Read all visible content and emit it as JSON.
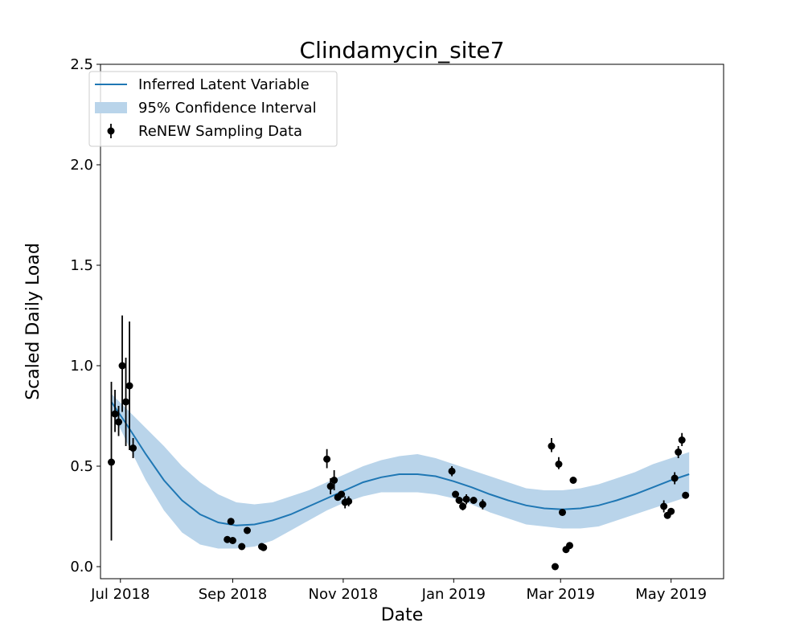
{
  "chart_data": {
    "type": "line",
    "title": "Clindamycin_site7",
    "xlabel": "Date",
    "ylabel": "Scaled Daily Load",
    "xlim": [
      "2018-06-20",
      "2019-05-30"
    ],
    "ylim": [
      -0.06,
      2.5
    ],
    "xticks": [
      {
        "date": "2018-07-01",
        "label": "Jul 2018"
      },
      {
        "date": "2018-09-01",
        "label": "Sep 2018"
      },
      {
        "date": "2018-11-01",
        "label": "Nov 2018"
      },
      {
        "date": "2019-01-01",
        "label": "Jan 2019"
      },
      {
        "date": "2019-03-01",
        "label": "Mar 2019"
      },
      {
        "date": "2019-05-01",
        "label": "May 2019"
      }
    ],
    "yticks": [
      {
        "value": 0.0,
        "label": "0.0"
      },
      {
        "value": 0.5,
        "label": "0.5"
      },
      {
        "value": 1.0,
        "label": "1.0"
      },
      {
        "value": 1.5,
        "label": "1.5"
      },
      {
        "value": 2.0,
        "label": "2.0"
      },
      {
        "value": 2.5,
        "label": "2.5"
      }
    ],
    "grid": false,
    "legend_position": "top-left",
    "colors": {
      "line": "#1f77b4",
      "band": "#b9d4ea",
      "points": "#000000"
    },
    "series": [
      {
        "name": "Inferred Latent Variable",
        "kind": "line",
        "points": [
          {
            "x": "2018-06-26",
            "y": 0.82
          },
          {
            "x": "2018-07-05",
            "y": 0.7
          },
          {
            "x": "2018-07-15",
            "y": 0.56
          },
          {
            "x": "2018-07-25",
            "y": 0.43
          },
          {
            "x": "2018-08-04",
            "y": 0.33
          },
          {
            "x": "2018-08-14",
            "y": 0.26
          },
          {
            "x": "2018-08-24",
            "y": 0.22
          },
          {
            "x": "2018-09-03",
            "y": 0.205
          },
          {
            "x": "2018-09-13",
            "y": 0.21
          },
          {
            "x": "2018-09-23",
            "y": 0.23
          },
          {
            "x": "2018-10-03",
            "y": 0.26
          },
          {
            "x": "2018-10-13",
            "y": 0.3
          },
          {
            "x": "2018-10-23",
            "y": 0.34
          },
          {
            "x": "2018-11-02",
            "y": 0.38
          },
          {
            "x": "2018-11-12",
            "y": 0.42
          },
          {
            "x": "2018-11-22",
            "y": 0.445
          },
          {
            "x": "2018-12-02",
            "y": 0.46
          },
          {
            "x": "2018-12-12",
            "y": 0.46
          },
          {
            "x": "2018-12-22",
            "y": 0.45
          },
          {
            "x": "2019-01-01",
            "y": 0.425
          },
          {
            "x": "2019-01-11",
            "y": 0.395
          },
          {
            "x": "2019-01-21",
            "y": 0.36
          },
          {
            "x": "2019-01-31",
            "y": 0.33
          },
          {
            "x": "2019-02-10",
            "y": 0.305
          },
          {
            "x": "2019-02-20",
            "y": 0.29
          },
          {
            "x": "2019-03-02",
            "y": 0.285
          },
          {
            "x": "2019-03-12",
            "y": 0.29
          },
          {
            "x": "2019-03-22",
            "y": 0.305
          },
          {
            "x": "2019-04-01",
            "y": 0.33
          },
          {
            "x": "2019-04-11",
            "y": 0.36
          },
          {
            "x": "2019-04-21",
            "y": 0.395
          },
          {
            "x": "2019-05-01",
            "y": 0.43
          },
          {
            "x": "2019-05-11",
            "y": 0.46
          }
        ]
      },
      {
        "name": "95% Confidence Interval",
        "kind": "band",
        "points": [
          {
            "x": "2018-06-26",
            "lower": 0.78,
            "upper": 0.86
          },
          {
            "x": "2018-07-05",
            "lower": 0.61,
            "upper": 0.78
          },
          {
            "x": "2018-07-15",
            "lower": 0.43,
            "upper": 0.69
          },
          {
            "x": "2018-07-25",
            "lower": 0.28,
            "upper": 0.6
          },
          {
            "x": "2018-08-04",
            "lower": 0.17,
            "upper": 0.5
          },
          {
            "x": "2018-08-14",
            "lower": 0.11,
            "upper": 0.42
          },
          {
            "x": "2018-08-24",
            "lower": 0.09,
            "upper": 0.36
          },
          {
            "x": "2018-09-03",
            "lower": 0.09,
            "upper": 0.32
          },
          {
            "x": "2018-09-13",
            "lower": 0.1,
            "upper": 0.31
          },
          {
            "x": "2018-09-23",
            "lower": 0.13,
            "upper": 0.32
          },
          {
            "x": "2018-10-03",
            "lower": 0.18,
            "upper": 0.35
          },
          {
            "x": "2018-10-13",
            "lower": 0.23,
            "upper": 0.38
          },
          {
            "x": "2018-10-23",
            "lower": 0.28,
            "upper": 0.42
          },
          {
            "x": "2018-11-02",
            "lower": 0.32,
            "upper": 0.46
          },
          {
            "x": "2018-11-12",
            "lower": 0.35,
            "upper": 0.5
          },
          {
            "x": "2018-11-22",
            "lower": 0.37,
            "upper": 0.53
          },
          {
            "x": "2018-12-02",
            "lower": 0.37,
            "upper": 0.55
          },
          {
            "x": "2018-12-12",
            "lower": 0.37,
            "upper": 0.56
          },
          {
            "x": "2018-12-22",
            "lower": 0.36,
            "upper": 0.54
          },
          {
            "x": "2019-01-01",
            "lower": 0.34,
            "upper": 0.51
          },
          {
            "x": "2019-01-11",
            "lower": 0.31,
            "upper": 0.48
          },
          {
            "x": "2019-01-21",
            "lower": 0.27,
            "upper": 0.45
          },
          {
            "x": "2019-01-31",
            "lower": 0.24,
            "upper": 0.42
          },
          {
            "x": "2019-02-10",
            "lower": 0.21,
            "upper": 0.39
          },
          {
            "x": "2019-02-20",
            "lower": 0.2,
            "upper": 0.38
          },
          {
            "x": "2019-03-02",
            "lower": 0.19,
            "upper": 0.38
          },
          {
            "x": "2019-03-12",
            "lower": 0.19,
            "upper": 0.39
          },
          {
            "x": "2019-03-22",
            "lower": 0.2,
            "upper": 0.41
          },
          {
            "x": "2019-04-01",
            "lower": 0.23,
            "upper": 0.44
          },
          {
            "x": "2019-04-11",
            "lower": 0.26,
            "upper": 0.47
          },
          {
            "x": "2019-04-21",
            "lower": 0.29,
            "upper": 0.51
          },
          {
            "x": "2019-05-01",
            "lower": 0.32,
            "upper": 0.54
          },
          {
            "x": "2019-05-11",
            "lower": 0.35,
            "upper": 0.57
          }
        ]
      },
      {
        "name": "ReNEW Sampling Data",
        "kind": "errorbar",
        "points": [
          {
            "x": "2018-06-26",
            "y": 0.52,
            "lower": 0.13,
            "upper": 0.92
          },
          {
            "x": "2018-06-28",
            "y": 0.76,
            "lower": 0.67,
            "upper": 0.88
          },
          {
            "x": "2018-06-30",
            "y": 0.72,
            "lower": 0.65,
            "upper": 0.8
          },
          {
            "x": "2018-07-02",
            "y": 1.0,
            "lower": 0.77,
            "upper": 1.25
          },
          {
            "x": "2018-07-04",
            "y": 0.82,
            "lower": 0.6,
            "upper": 1.04
          },
          {
            "x": "2018-07-06",
            "y": 0.9,
            "lower": 0.58,
            "upper": 1.22
          },
          {
            "x": "2018-07-08",
            "y": 0.59,
            "lower": 0.54,
            "upper": 0.64
          },
          {
            "x": "2018-08-29",
            "y": 0.135
          },
          {
            "x": "2018-08-31",
            "y": 0.225
          },
          {
            "x": "2018-09-01",
            "y": 0.13
          },
          {
            "x": "2018-09-06",
            "y": 0.1
          },
          {
            "x": "2018-09-09",
            "y": 0.18
          },
          {
            "x": "2018-09-17",
            "y": 0.1
          },
          {
            "x": "2018-09-18",
            "y": 0.095
          },
          {
            "x": "2018-10-23",
            "y": 0.535,
            "lower": 0.49,
            "upper": 0.585
          },
          {
            "x": "2018-10-25",
            "y": 0.4,
            "lower": 0.36,
            "upper": 0.44
          },
          {
            "x": "2018-10-27",
            "y": 0.43,
            "lower": 0.38,
            "upper": 0.48
          },
          {
            "x": "2018-10-29",
            "y": 0.345
          },
          {
            "x": "2018-10-31",
            "y": 0.36
          },
          {
            "x": "2018-11-02",
            "y": 0.32,
            "lower": 0.29,
            "upper": 0.35
          },
          {
            "x": "2018-11-04",
            "y": 0.325,
            "lower": 0.3,
            "upper": 0.35
          },
          {
            "x": "2018-12-31",
            "y": 0.475,
            "lower": 0.45,
            "upper": 0.5
          },
          {
            "x": "2019-01-02",
            "y": 0.36
          },
          {
            "x": "2019-01-04",
            "y": 0.33
          },
          {
            "x": "2019-01-06",
            "y": 0.3,
            "lower": 0.28,
            "upper": 0.32
          },
          {
            "x": "2019-01-08",
            "y": 0.335,
            "lower": 0.31,
            "upper": 0.36
          },
          {
            "x": "2019-01-12",
            "y": 0.33
          },
          {
            "x": "2019-01-17",
            "y": 0.31,
            "lower": 0.285,
            "upper": 0.335
          },
          {
            "x": "2019-02-24",
            "y": 0.6,
            "lower": 0.57,
            "upper": 0.64
          },
          {
            "x": "2019-02-26",
            "y": 0.0
          },
          {
            "x": "2019-02-28",
            "y": 0.51,
            "lower": 0.485,
            "upper": 0.545
          },
          {
            "x": "2019-03-02",
            "y": 0.27
          },
          {
            "x": "2019-03-04",
            "y": 0.085
          },
          {
            "x": "2019-03-06",
            "y": 0.105
          },
          {
            "x": "2019-03-08",
            "y": 0.43
          },
          {
            "x": "2019-04-27",
            "y": 0.3,
            "lower": 0.27,
            "upper": 0.33
          },
          {
            "x": "2019-04-29",
            "y": 0.255
          },
          {
            "x": "2019-05-01",
            "y": 0.275
          },
          {
            "x": "2019-05-03",
            "y": 0.44,
            "lower": 0.41,
            "upper": 0.47
          },
          {
            "x": "2019-05-05",
            "y": 0.57,
            "lower": 0.54,
            "upper": 0.6
          },
          {
            "x": "2019-05-07",
            "y": 0.63,
            "lower": 0.6,
            "upper": 0.665
          },
          {
            "x": "2019-05-09",
            "y": 0.355
          }
        ]
      }
    ]
  }
}
